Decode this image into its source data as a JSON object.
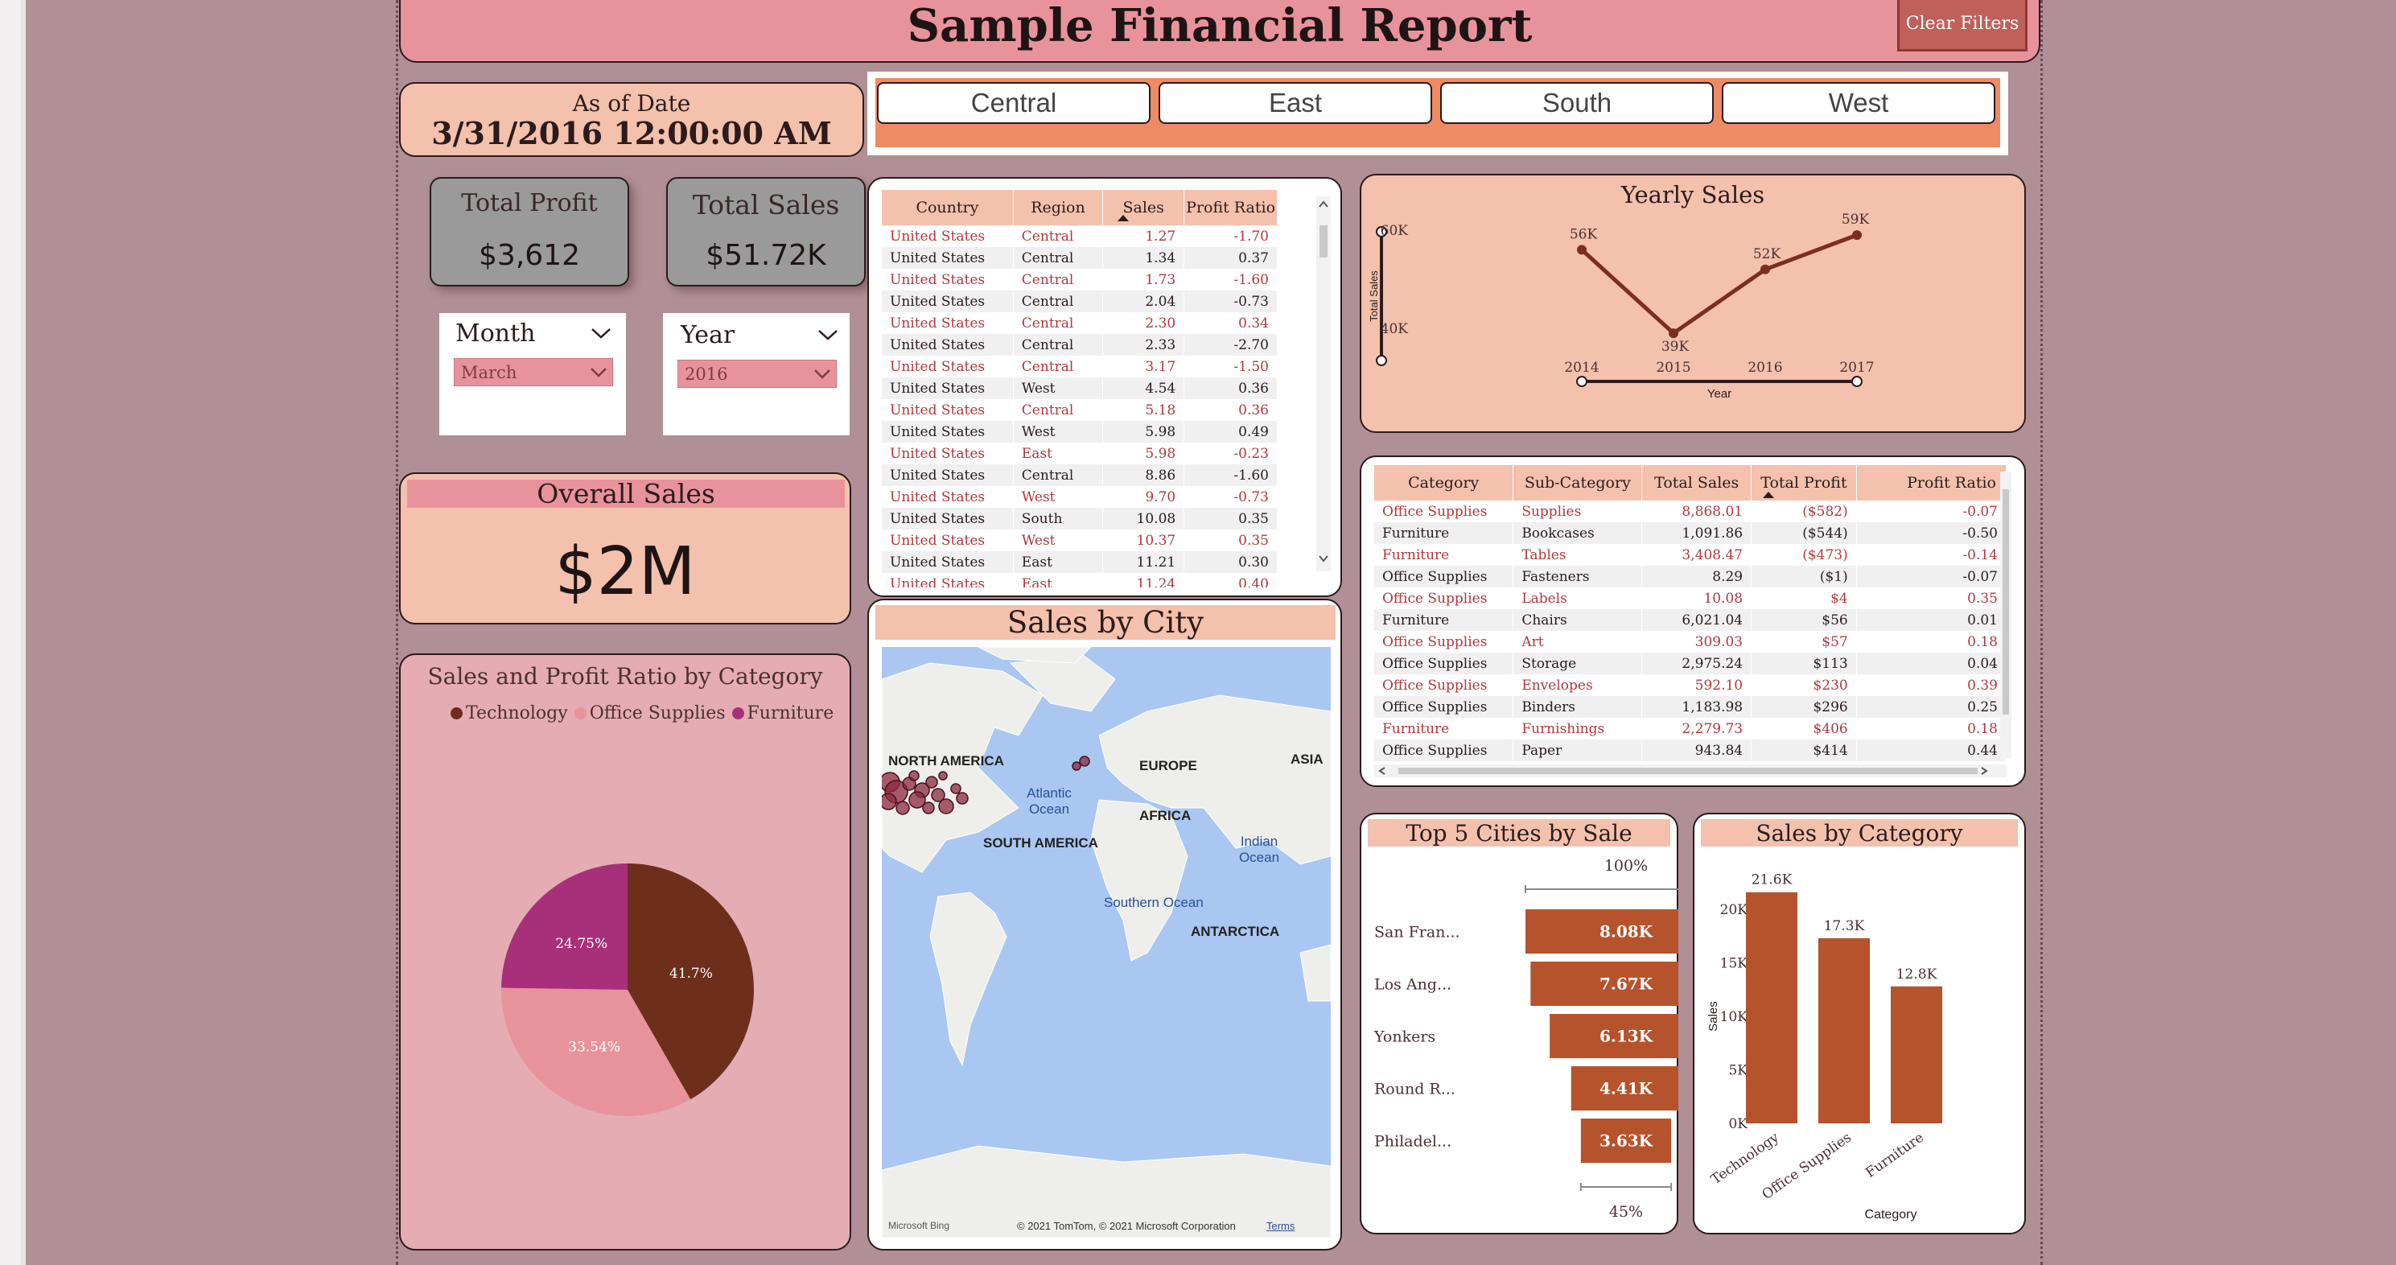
{
  "header": {
    "title": "Sample Financial Report",
    "clear_filters": "Clear Filters"
  },
  "as_of": {
    "label": "As of Date",
    "value": "3/31/2016 12:00:00 AM"
  },
  "regions": [
    "Central",
    "East",
    "South",
    "West"
  ],
  "kpis": {
    "total_profit": {
      "label": "Total Profit",
      "value": "$3,612"
    },
    "total_sales": {
      "label": "Total Sales",
      "value": "$51.72K"
    }
  },
  "slicers": {
    "month": {
      "label": "Month",
      "selected": "March"
    },
    "year": {
      "label": "Year",
      "selected": "2016"
    }
  },
  "overall_sales": {
    "label": "Overall Sales",
    "value": "$2M"
  },
  "orders_table": {
    "columns": [
      "Country",
      "Region",
      "Sales",
      "Profit Ratio"
    ],
    "rows": [
      [
        "United States",
        "Central",
        "1.27",
        "-1.70"
      ],
      [
        "United States",
        "Central",
        "1.34",
        "0.37"
      ],
      [
        "United States",
        "Central",
        "1.73",
        "-1.60"
      ],
      [
        "United States",
        "Central",
        "2.04",
        "-0.73"
      ],
      [
        "United States",
        "Central",
        "2.30",
        "0.34"
      ],
      [
        "United States",
        "Central",
        "2.33",
        "-2.70"
      ],
      [
        "United States",
        "Central",
        "3.17",
        "-1.50"
      ],
      [
        "United States",
        "West",
        "4.54",
        "0.36"
      ],
      [
        "United States",
        "Central",
        "5.18",
        "0.36"
      ],
      [
        "United States",
        "West",
        "5.98",
        "0.49"
      ],
      [
        "United States",
        "East",
        "5.98",
        "-0.23"
      ],
      [
        "United States",
        "Central",
        "8.86",
        "-1.60"
      ],
      [
        "United States",
        "West",
        "9.70",
        "-0.73"
      ],
      [
        "United States",
        "South",
        "10.08",
        "0.35"
      ],
      [
        "United States",
        "West",
        "10.37",
        "0.35"
      ],
      [
        "United States",
        "East",
        "11.21",
        "0.30"
      ],
      [
        "United States",
        "East",
        "11.24",
        "0.40"
      ]
    ]
  },
  "category_table": {
    "columns": [
      "Category",
      "Sub-Category",
      "Total Sales",
      "Total Profit",
      "Profit Ratio"
    ],
    "rows": [
      [
        "Office Supplies",
        "Supplies",
        "8,868.01",
        "($582)",
        "-0.07"
      ],
      [
        "Furniture",
        "Bookcases",
        "1,091.86",
        "($544)",
        "-0.50"
      ],
      [
        "Furniture",
        "Tables",
        "3,408.47",
        "($473)",
        "-0.14"
      ],
      [
        "Office Supplies",
        "Fasteners",
        "8.29",
        "($1)",
        "-0.07"
      ],
      [
        "Office Supplies",
        "Labels",
        "10.08",
        "$4",
        "0.35"
      ],
      [
        "Furniture",
        "Chairs",
        "6,021.04",
        "$56",
        "0.01"
      ],
      [
        "Office Supplies",
        "Art",
        "309.03",
        "$57",
        "0.18"
      ],
      [
        "Office Supplies",
        "Storage",
        "2,975.24",
        "$113",
        "0.04"
      ],
      [
        "Office Supplies",
        "Envelopes",
        "592.10",
        "$230",
        "0.39"
      ],
      [
        "Office Supplies",
        "Binders",
        "1,183.98",
        "$296",
        "0.25"
      ],
      [
        "Furniture",
        "Furnishings",
        "2,279.73",
        "$406",
        "0.18"
      ],
      [
        "Office Supplies",
        "Paper",
        "943.84",
        "$414",
        "0.44"
      ]
    ]
  },
  "map": {
    "title": "Sales by City",
    "labels": {
      "north_america": "NORTH AMERICA",
      "europe": "EUROPE",
      "asia": "ASIA",
      "atlantic": "Atlantic Ocean",
      "africa": "AFRICA",
      "south_america": "SOUTH AMERICA",
      "indian": "Indian Ocean",
      "southern": "Southern Ocean",
      "antarctica": "ANTARCTICA"
    },
    "attribution": "© 2021 TomTom, © 2021 Microsoft Corporation",
    "terms": "Terms",
    "bing": "Microsoft Bing"
  },
  "chart_data": [
    {
      "type": "line",
      "title": "Yearly Sales",
      "xlabel": "Year",
      "ylabel": "Total Sales",
      "x": [
        "2014",
        "2015",
        "2016",
        "2017"
      ],
      "values": [
        56000,
        39000,
        52000,
        59000
      ],
      "data_labels": [
        "56K",
        "39K",
        "52K",
        "59K"
      ],
      "y_ticks": [
        "60K",
        "40K"
      ],
      "color": "#7a2e22"
    },
    {
      "type": "pie",
      "title": "Sales and Profit Ratio by Category",
      "legend": [
        "Technology",
        "Office Supplies",
        "Furniture"
      ],
      "values": [
        41.7,
        33.54,
        24.75
      ],
      "labels": [
        "41.7%",
        "33.54%",
        "24.75%"
      ],
      "colors": [
        "#6e2e1c",
        "#e8939b",
        "#a8307a"
      ]
    },
    {
      "type": "bar",
      "title": "Top 5 Cities by Sale",
      "categories": [
        "San Fran...",
        "Los Ang...",
        "Yonkers",
        "Round R...",
        "Philadel..."
      ],
      "values": [
        8080,
        7670,
        6130,
        4410,
        3630
      ],
      "data_labels": [
        "8.08K",
        "7.67K",
        "6.13K",
        "4.41K",
        "3.63K"
      ],
      "top_label": "100%",
      "bottom_label": "45%",
      "color": "#b5532c"
    },
    {
      "type": "bar",
      "title": "Sales by Category",
      "categories": [
        "Technology",
        "Office Supplies",
        "Furniture"
      ],
      "values": [
        21600,
        17300,
        12800
      ],
      "data_labels": [
        "21.6K",
        "17.3K",
        "12.8K"
      ],
      "xlabel": "Category",
      "ylabel": "Sales",
      "y_ticks": [
        "0K",
        "5K",
        "10K",
        "15K",
        "20K"
      ],
      "ylim": [
        0,
        20000
      ],
      "color": "#b5532c"
    }
  ]
}
